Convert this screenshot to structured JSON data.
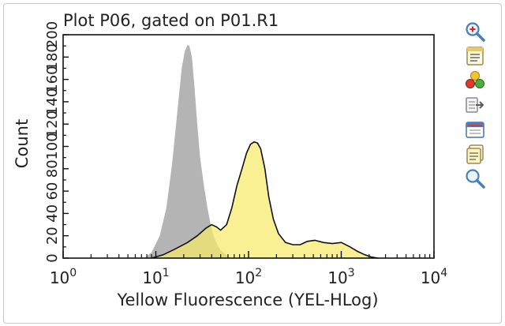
{
  "chart_data": {
    "type": "area",
    "title": "Plot P06, gated on P01.R1",
    "xlabel": "Yellow Fluorescence (YEL-HLog)",
    "ylabel": "Count",
    "xscale": "log",
    "xlim": [
      1,
      10000
    ],
    "ylim": [
      0,
      200
    ],
    "x_ticks": [
      {
        "value": 1,
        "base": "10",
        "exp": "0"
      },
      {
        "value": 10,
        "base": "10",
        "exp": "1"
      },
      {
        "value": 100,
        "base": "10",
        "exp": "2"
      },
      {
        "value": 1000,
        "base": "10",
        "exp": "3"
      },
      {
        "value": 10000,
        "base": "10",
        "exp": "4"
      }
    ],
    "y_ticks": [
      "0",
      "20",
      "40",
      "60",
      "80",
      "100",
      "120",
      "140",
      "160",
      "180",
      "200"
    ],
    "grid": false,
    "legend": "none",
    "series": [
      {
        "color": "#b4b4b4",
        "outline": false,
        "x": [
          7.5,
          9,
          11,
          13,
          15,
          17,
          19,
          20.5,
          22,
          23,
          24.5,
          26,
          28,
          30,
          33,
          36,
          39,
          42,
          46,
          50,
          55,
          60,
          65
        ],
        "y": [
          0,
          5,
          20,
          45,
          85,
          130,
          170,
          185,
          191,
          190,
          180,
          155,
          120,
          90,
          65,
          45,
          30,
          20,
          12,
          7,
          4,
          2,
          0
        ]
      },
      {
        "color": "#f7e96a",
        "outline": true,
        "x": [
          9,
          12,
          16,
          22,
          28,
          35,
          40,
          45,
          50,
          58,
          66,
          75,
          85,
          95,
          105,
          115,
          125,
          135,
          150,
          165,
          185,
          210,
          250,
          300,
          360,
          430,
          520,
          640,
          800,
          1000,
          1250,
          1500,
          1800,
          2100,
          2500
        ],
        "y": [
          0,
          3,
          8,
          14,
          20,
          27,
          30,
          28,
          25,
          30,
          45,
          65,
          80,
          94,
          102,
          104,
          103,
          98,
          80,
          55,
          35,
          22,
          14,
          12,
          12,
          15,
          16,
          14,
          13,
          14,
          10,
          6,
          3,
          1,
          0
        ]
      }
    ]
  },
  "toolbar": [
    {
      "icon": "zoom-in-icon"
    },
    {
      "icon": "properties-icon"
    },
    {
      "icon": "color-palette-icon"
    },
    {
      "icon": "export-icon"
    },
    {
      "icon": "calendar-icon"
    },
    {
      "icon": "copy-icon"
    },
    {
      "icon": "zoom-out-icon"
    }
  ]
}
